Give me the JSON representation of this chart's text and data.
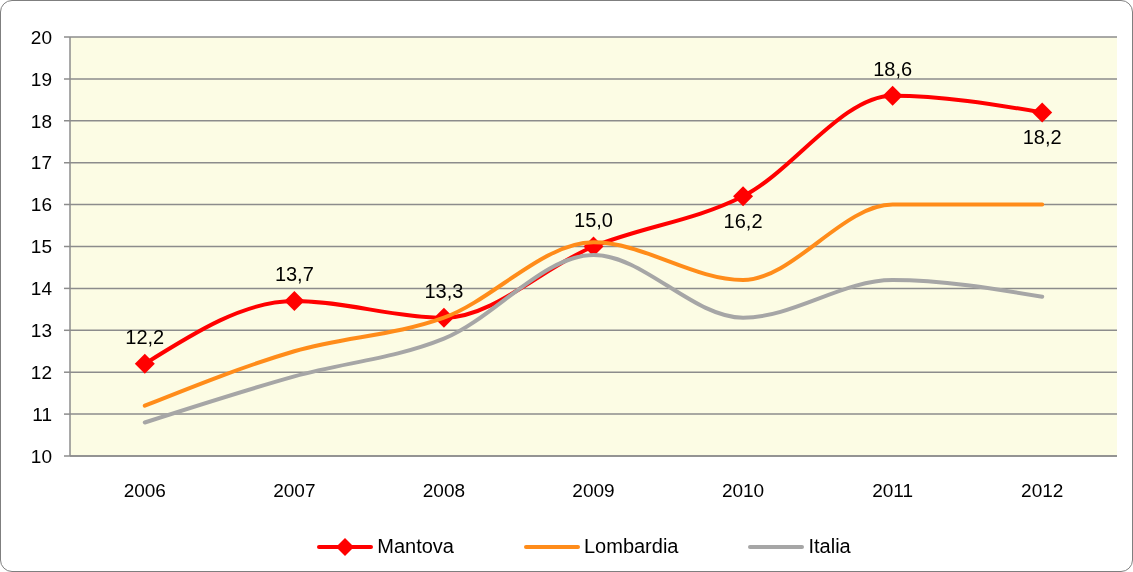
{
  "chart_data": {
    "type": "line",
    "categories": [
      "2006",
      "2007",
      "2008",
      "2009",
      "2010",
      "2011",
      "2012"
    ],
    "series": [
      {
        "name": "Mantova",
        "color": "#ff0000",
        "marker": "diamond",
        "values": [
          12.2,
          13.7,
          13.3,
          15.0,
          16.2,
          18.6,
          18.2
        ],
        "value_labels": [
          "12,2",
          "13,7",
          "13,3",
          "15,0",
          "16,2",
          "18,6",
          "18,2"
        ]
      },
      {
        "name": "Lombardia",
        "color": "#ff8c1a",
        "values": [
          11.2,
          12.5,
          13.3,
          15.1,
          14.2,
          16.0,
          16.0
        ]
      },
      {
        "name": "Italia",
        "color": "#a6a6a6",
        "values": [
          10.8,
          11.9,
          12.8,
          14.8,
          13.3,
          14.2,
          13.8
        ]
      }
    ],
    "ylim": [
      10,
      20
    ],
    "yticks": [
      10,
      11,
      12,
      13,
      14,
      15,
      16,
      17,
      18,
      19,
      20
    ],
    "grid": "y",
    "legend": "bottom",
    "marker": "none",
    "line_style": "solid"
  }
}
